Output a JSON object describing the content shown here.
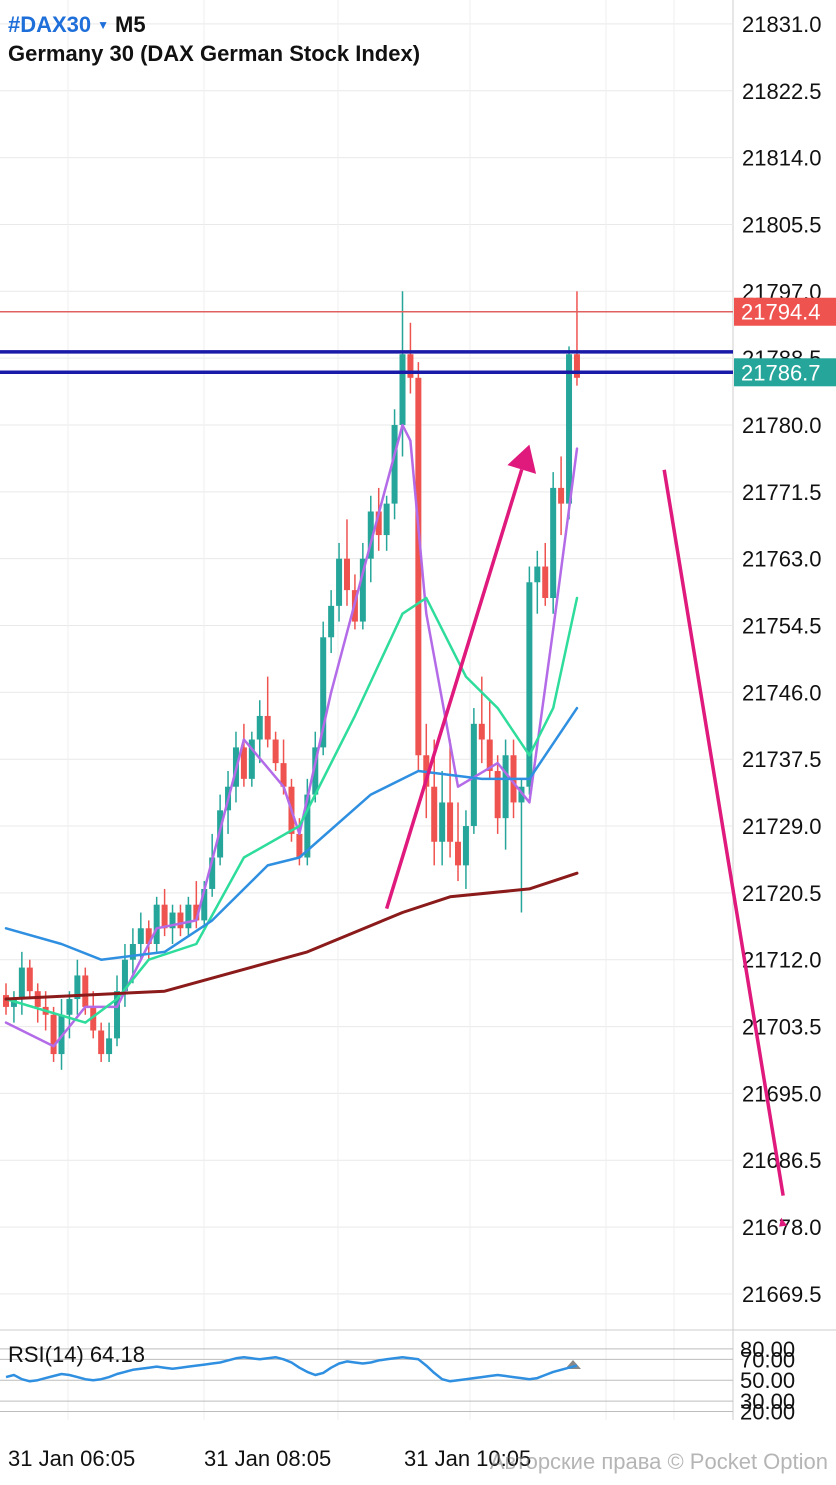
{
  "header": {
    "symbol": "#DAX30",
    "timeframe": "M5",
    "description": "Germany 30 (DAX German Stock Index)"
  },
  "watermark": "Авторские права © Pocket Option",
  "colors": {
    "bull": "#26a69a",
    "bear": "#ef5350",
    "ma_fast": "#b36be8",
    "ma_mid": "#2edc9b",
    "ma_slow": "#2f8fe0",
    "ma_long": "#8b1a1a",
    "level_blue": "#1a1aa8",
    "level_red": "#e06060",
    "arrow": "#e0197d",
    "rsi": "#2f8fe0"
  },
  "chart_data": [
    {
      "type": "candlestick",
      "title": "#DAX30 M5",
      "yaxis": {
        "range": [
          21662.5,
          21832.0
        ],
        "ticks": [
          "21831.0",
          "21822.5",
          "21814.0",
          "21805.5",
          "21797.0",
          "21788.5",
          "21780.0",
          "21771.5",
          "21763.0",
          "21754.5",
          "21746.0",
          "21737.5",
          "21729.0",
          "21720.5",
          "21712.0",
          "21703.5",
          "21695.0",
          "21686.5",
          "21678.0",
          "21669.5"
        ]
      },
      "xaxis": {
        "tick_labels": [
          "31 Jan 06:05",
          "31 Jan 08:05",
          "31 Jan 10:05"
        ]
      },
      "candles": [
        [
          21707.5,
          21709,
          21705,
          21706
        ],
        [
          21706,
          21708,
          21704,
          21707
        ],
        [
          21707,
          21713,
          21705,
          21711
        ],
        [
          21711,
          21712,
          21707,
          21708
        ],
        [
          21708,
          21709,
          21704,
          21706
        ],
        [
          21706,
          21708,
          21703,
          21705
        ],
        [
          21705,
          21706,
          21699,
          21700
        ],
        [
          21700,
          21707,
          21698,
          21705
        ],
        [
          21705,
          21708,
          21702,
          21707
        ],
        [
          21707,
          21712,
          21705,
          21710
        ],
        [
          21710,
          21711,
          21705,
          21706
        ],
        [
          21706,
          21708,
          21702,
          21703
        ],
        [
          21703,
          21704,
          21699,
          21700
        ],
        [
          21700,
          21704,
          21699,
          21702
        ],
        [
          21702,
          21710,
          21701,
          21708
        ],
        [
          21708,
          21714,
          21706,
          21712
        ],
        [
          21712,
          21716,
          21709,
          21714
        ],
        [
          21714,
          21718,
          21712,
          21716
        ],
        [
          21716,
          21717,
          21712,
          21714
        ],
        [
          21714,
          21720,
          21713,
          21719
        ],
        [
          21719,
          21721,
          21715,
          21716
        ],
        [
          21716,
          21719,
          21714,
          21718
        ],
        [
          21718,
          21719,
          21715,
          21716
        ],
        [
          21716,
          21720,
          21715,
          21719
        ],
        [
          21719,
          21722,
          21716,
          21717
        ],
        [
          21717,
          21722,
          21716,
          21721
        ],
        [
          21721,
          21728,
          21720,
          21725
        ],
        [
          21725,
          21733,
          21724,
          21731
        ],
        [
          21731,
          21736,
          21728,
          21734
        ],
        [
          21734,
          21741,
          21732,
          21739
        ],
        [
          21739,
          21742,
          21734,
          21735
        ],
        [
          21735,
          21741,
          21734,
          21740
        ],
        [
          21740,
          21745,
          21737,
          21743
        ],
        [
          21743,
          21748,
          21739,
          21740
        ],
        [
          21740,
          21741,
          21736,
          21737
        ],
        [
          21737,
          21740,
          21733,
          21734
        ],
        [
          21734,
          21735,
          21727,
          21728
        ],
        [
          21728,
          21730,
          21724,
          21725
        ],
        [
          21725,
          21735,
          21724,
          21733
        ],
        [
          21733,
          21741,
          21732,
          21739
        ],
        [
          21739,
          21755,
          21738,
          21753
        ],
        [
          21753,
          21759,
          21751,
          21757
        ],
        [
          21757,
          21765,
          21755,
          21763
        ],
        [
          21763,
          21768,
          21757,
          21759
        ],
        [
          21759,
          21761,
          21754,
          21755
        ],
        [
          21755,
          21765,
          21754,
          21763
        ],
        [
          21763,
          21771,
          21760,
          21769
        ],
        [
          21769,
          21772,
          21764,
          21766
        ],
        [
          21766,
          21771,
          21764,
          21770
        ],
        [
          21770,
          21782,
          21768,
          21780
        ],
        [
          21780,
          21797,
          21776,
          21789
        ],
        [
          21789,
          21793,
          21784,
          21786
        ],
        [
          21786,
          21788,
          21736,
          21738
        ],
        [
          21738,
          21742,
          21730,
          21734
        ],
        [
          21734,
          21740,
          21724,
          21727
        ],
        [
          21727,
          21736,
          21724,
          21732
        ],
        [
          21732,
          21740,
          21725,
          21727
        ],
        [
          21727,
          21732,
          21722,
          21724
        ],
        [
          21724,
          21731,
          21721,
          21729
        ],
        [
          21729,
          21744,
          21728,
          21742
        ],
        [
          21742,
          21748,
          21737,
          21740
        ],
        [
          21740,
          21745,
          21735,
          21736
        ],
        [
          21736,
          21738,
          21728,
          21730
        ],
        [
          21730,
          21740,
          21726,
          21738
        ],
        [
          21738,
          21740,
          21730,
          21732
        ],
        [
          21732,
          21735,
          21718,
          21734
        ],
        [
          21734,
          21762,
          21733,
          21760
        ],
        [
          21760,
          21764,
          21756,
          21762
        ],
        [
          21762,
          21765,
          21757,
          21758
        ],
        [
          21758,
          21774,
          21756,
          21772
        ],
        [
          21772,
          21776,
          21766,
          21770
        ],
        [
          21770,
          21790,
          21768,
          21789
        ],
        [
          21789,
          21797,
          21785,
          21786
        ]
      ],
      "moving_averages": [
        {
          "role": "fast",
          "points": [
            [
              0,
              21704
            ],
            [
              6,
              21701
            ],
            [
              10,
              21706
            ],
            [
              14,
              21706
            ],
            [
              19,
              21716
            ],
            [
              24,
              21717
            ],
            [
              30,
              21740
            ],
            [
              35,
              21734
            ],
            [
              37,
              21728
            ],
            [
              41,
              21746
            ],
            [
              46,
              21765
            ],
            [
              50,
              21780
            ],
            [
              51,
              21778
            ],
            [
              53,
              21756
            ],
            [
              57,
              21734
            ],
            [
              62,
              21737
            ],
            [
              66,
              21732
            ],
            [
              69,
              21754
            ],
            [
              72,
              21777
            ]
          ]
        },
        {
          "role": "mid",
          "points": [
            [
              0,
              21707
            ],
            [
              10,
              21704
            ],
            [
              14,
              21707
            ],
            [
              18,
              21712
            ],
            [
              24,
              21714
            ],
            [
              30,
              21725
            ],
            [
              37,
              21729
            ],
            [
              44,
              21743
            ],
            [
              50,
              21756
            ],
            [
              53,
              21758
            ],
            [
              58,
              21748
            ],
            [
              62,
              21744
            ],
            [
              66,
              21738
            ],
            [
              69,
              21744
            ],
            [
              72,
              21758
            ]
          ]
        },
        {
          "role": "slow",
          "points": [
            [
              0,
              21716
            ],
            [
              7,
              21714
            ],
            [
              12,
              21712
            ],
            [
              20,
              21713
            ],
            [
              26,
              21717
            ],
            [
              33,
              21724
            ],
            [
              37,
              21725
            ],
            [
              46,
              21733
            ],
            [
              52,
              21736
            ],
            [
              60,
              21735
            ],
            [
              66,
              21735
            ],
            [
              72,
              21744
            ]
          ]
        },
        {
          "role": "long",
          "points": [
            [
              0,
              21707
            ],
            [
              20,
              21708
            ],
            [
              38,
              21713
            ],
            [
              50,
              21718
            ],
            [
              56,
              21720
            ],
            [
              66,
              21721
            ],
            [
              72,
              21723
            ]
          ]
        }
      ],
      "levels": [
        {
          "value": 21794.4,
          "label": "21794.4",
          "color": "red"
        },
        {
          "value": 21789.3,
          "color": "blue"
        },
        {
          "value": 21786.7,
          "label": "21786.7",
          "color": "blue"
        }
      ],
      "annotations": [
        {
          "type": "arrow-up",
          "from": [
            48,
            21718.5
          ],
          "to": [
            66,
            21777.5
          ]
        },
        {
          "type": "arrow-down-line",
          "from": [
            83,
            21774.3
          ],
          "to": [
            98,
            21682.0
          ]
        }
      ]
    },
    {
      "type": "line",
      "title": "RSI(14)",
      "value_label": "64.18",
      "yaxis": {
        "range": [
          10,
          100
        ],
        "ticks": [
          "80.00",
          "70.00",
          "50.00",
          "30.00",
          "20.00"
        ]
      },
      "values": [
        53,
        55,
        51,
        49,
        50,
        52,
        54,
        56,
        55,
        53,
        51,
        50,
        51,
        53,
        56,
        58,
        60,
        61,
        62,
        63,
        62,
        61,
        62,
        63,
        64,
        65,
        66,
        67,
        69,
        71,
        72,
        71,
        70,
        71,
        72,
        70,
        67,
        62,
        58,
        55,
        57,
        62,
        66,
        68,
        67,
        66,
        67,
        69,
        70,
        71,
        72,
        71,
        70,
        64,
        57,
        51,
        49,
        50,
        51,
        52,
        53,
        54,
        55,
        54,
        53,
        52,
        51,
        52,
        55,
        58,
        60,
        62,
        64
      ]
    }
  ]
}
